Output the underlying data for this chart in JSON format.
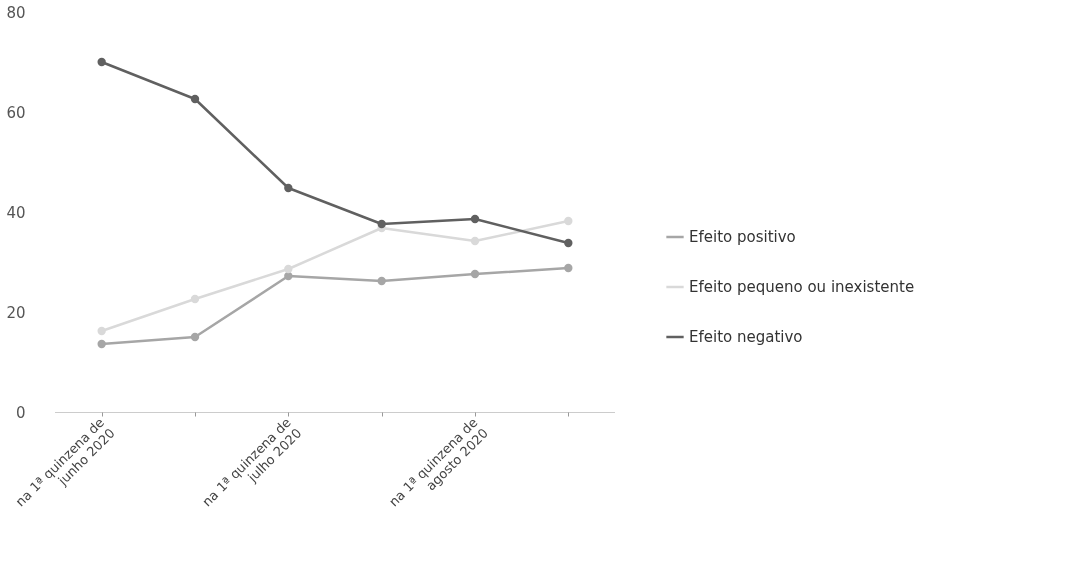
{
  "chart_data": {
    "type": "line",
    "categories": [
      "na 1ª quinzena de\njunho 2020",
      null,
      "na 1ª quinzena de\njulho 2020",
      null,
      "na 1ª quinzena de\nagosto 2020",
      null
    ],
    "series": [
      {
        "name": "Efeito positivo",
        "color": "#a6a6a6",
        "values": [
          13.6,
          15,
          27.2,
          26.2,
          27.6,
          28.8
        ]
      },
      {
        "name": "Efeito pequeno ou inexistente",
        "color": "#d9d9d9",
        "values": [
          16.2,
          22.6,
          28.6,
          36.8,
          34.2,
          38.2
        ]
      },
      {
        "name": "Efeito negativo",
        "color": "#606060",
        "values": [
          70,
          62.6,
          44.8,
          37.6,
          38.6,
          33.8
        ]
      }
    ],
    "ylim": [
      0,
      80
    ],
    "yticks": [
      0,
      20,
      40,
      60,
      80
    ],
    "grid": false,
    "legend": "right",
    "marker": "circle",
    "line_style": "solid"
  }
}
